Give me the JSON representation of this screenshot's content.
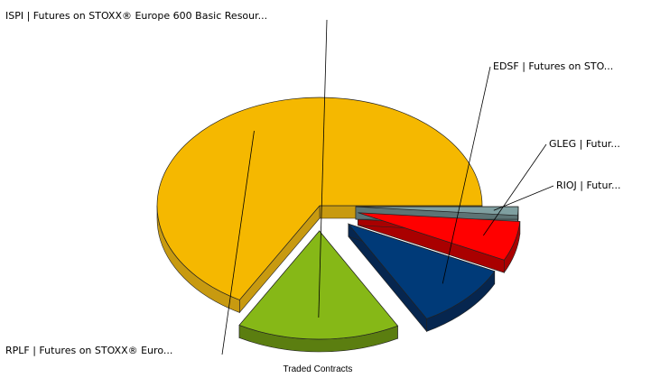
{
  "chart_data": {
    "type": "pie",
    "title": "Traded Contracts",
    "style": "3d-exploded",
    "slices": [
      {
        "label": "RPLF | Futures on STOXX® Euro...",
        "value": 66.8,
        "color": "#f5b800",
        "side_color": "#c89a10"
      },
      {
        "label": "ISPI | Futures on STOXX® Europe 600 Basic Resour...",
        "value": 16.2,
        "color": "#86b817",
        "side_color": "#5b7e10"
      },
      {
        "label": "EDSF | Futures on STO...",
        "value": 9.8,
        "color": "#003a78",
        "side_color": "#06264f"
      },
      {
        "label": "GLEG | Futur...",
        "value": 5.9,
        "color": "#ff0000",
        "side_color": "#a90000"
      },
      {
        "label": "RIOJ | Futur...",
        "value": 1.3,
        "color": "#7f9fa0",
        "side_color": "#5d7475"
      }
    ]
  }
}
